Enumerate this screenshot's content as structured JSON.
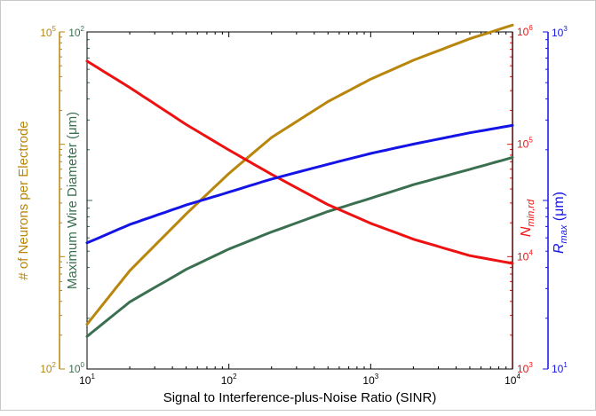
{
  "chart_data": {
    "type": "line",
    "title": "",
    "xlabel": "Signal to Interference-plus-Noise Ratio (SINR)",
    "x_scale": "log",
    "xlim": [
      10,
      10000
    ],
    "x_ticks": [
      10,
      100,
      1000,
      10000
    ],
    "x_tick_labels": [
      {
        "base": "10",
        "exp": "1"
      },
      {
        "base": "10",
        "exp": "2"
      },
      {
        "base": "10",
        "exp": "3"
      },
      {
        "base": "10",
        "exp": "4"
      }
    ],
    "grid": false,
    "axes": [
      {
        "id": "neurons",
        "side": "left-outer",
        "label": "# of Neurons per Electrode",
        "scale": "log",
        "ylim": [
          100,
          100000
        ],
        "color": "#b8860b",
        "tick_labels": [
          {
            "base": "10",
            "exp": "2"
          },
          {
            "base": "10",
            "exp": "5"
          }
        ]
      },
      {
        "id": "diameter",
        "side": "left-inner",
        "label": "Maximum Wire Diameter (μm)",
        "scale": "log",
        "ylim": [
          1,
          100
        ],
        "color": "#3a7050",
        "tick_labels": [
          {
            "base": "10",
            "exp": "0"
          },
          {
            "base": "10",
            "exp": "2"
          }
        ]
      },
      {
        "id": "nmin",
        "side": "right-inner",
        "label_main": "N",
        "label_sub": "min,rd",
        "scale": "log",
        "ylim": [
          1000,
          1000000
        ],
        "color": "#ee1111",
        "tick_labels": [
          {
            "base": "10",
            "exp": "3"
          },
          {
            "base": "10",
            "exp": "4"
          },
          {
            "base": "10",
            "exp": "5"
          },
          {
            "base": "10",
            "exp": "6"
          }
        ]
      },
      {
        "id": "rmax",
        "side": "right-outer",
        "label_main": "R",
        "label_sub": "max",
        "label_unit": " (μm)",
        "scale": "log",
        "ylim": [
          10,
          1000
        ],
        "color": "#1414e6",
        "tick_labels": [
          {
            "base": "10",
            "exp": "1"
          },
          {
            "base": "10",
            "exp": "3"
          }
        ]
      }
    ],
    "series": [
      {
        "axis": "neurons",
        "color": "#b8860b",
        "x": [
          10,
          20,
          50,
          100,
          200,
          500,
          1000,
          2000,
          5000,
          10000
        ],
        "y": [
          250,
          750,
          2400,
          5500,
          11500,
          24000,
          38000,
          56000,
          87000,
          115000
        ]
      },
      {
        "axis": "diameter",
        "color": "#3a7050",
        "x": [
          10,
          20,
          50,
          100,
          200,
          500,
          1000,
          2000,
          5000,
          10000
        ],
        "y": [
          1.56,
          2.5,
          3.9,
          5.15,
          6.5,
          8.6,
          10.3,
          12.4,
          15.3,
          18.0
        ]
      },
      {
        "axis": "nmin",
        "color": "#ee1111",
        "x": [
          10,
          20,
          50,
          100,
          200,
          500,
          1000,
          2000,
          5000,
          10000
        ],
        "y": [
          550000,
          320000,
          150000,
          89000,
          54000,
          29000,
          19800,
          14300,
          10200,
          8700
        ]
      },
      {
        "axis": "rmax",
        "color": "#1414e6",
        "x": [
          10,
          20,
          50,
          100,
          200,
          500,
          1000,
          2000,
          5000,
          10000
        ],
        "y": [
          56,
          72,
          94,
          112,
          134,
          164,
          190,
          216,
          252,
          279
        ]
      }
    ]
  }
}
